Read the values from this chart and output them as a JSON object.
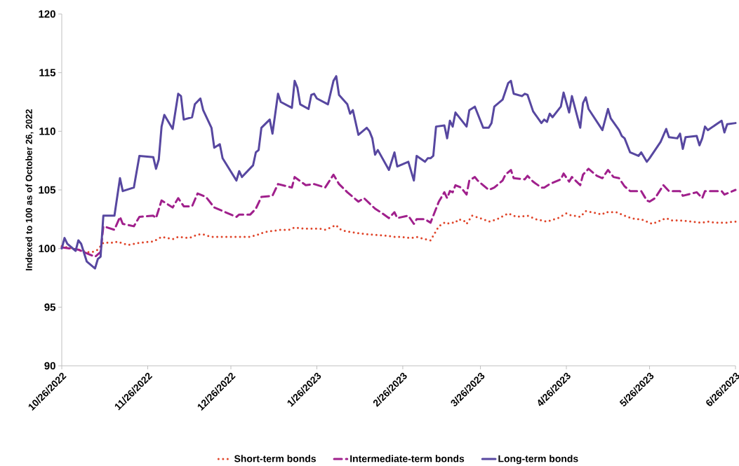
{
  "chart_data": {
    "type": "line",
    "ylabel": "Indexed to 100 as of October 26, 2022",
    "xlim": [
      "2022-10-26",
      "2023-06-26"
    ],
    "xticks": [
      {
        "value": "2022-10-26",
        "label": "10/26/2022"
      },
      {
        "value": "2022-11-26",
        "label": "11/26/2022"
      },
      {
        "value": "2022-12-26",
        "label": "12/26/2022"
      },
      {
        "value": "2023-01-26",
        "label": "1/26/2023"
      },
      {
        "value": "2023-02-26",
        "label": "2/26/2023"
      },
      {
        "value": "2023-03-26",
        "label": "3/26/2023"
      },
      {
        "value": "2023-04-26",
        "label": "4/26/2023"
      },
      {
        "value": "2023-05-26",
        "label": "5/26/2023"
      },
      {
        "value": "2023-06-26",
        "label": "6/26/2023"
      }
    ],
    "ylim": [
      90,
      120
    ],
    "yticks": [
      90,
      95,
      100,
      105,
      110,
      115,
      120
    ],
    "legend": "bottom",
    "marker": "none",
    "series": [
      {
        "name": "Short-term bonds",
        "color": "#e0452a",
        "line_style": "dotted",
        "x": [
          "2022-10-26",
          "2022-10-28",
          "2022-11-01",
          "2022-11-04",
          "2022-11-06",
          "2022-11-08",
          "2022-11-10",
          "2022-11-14",
          "2022-11-15",
          "2022-11-19",
          "2022-11-23",
          "2022-11-28",
          "2022-12-01",
          "2022-12-05",
          "2022-12-07",
          "2022-12-11",
          "2022-12-14",
          "2022-12-16",
          "2022-12-19",
          "2022-12-24",
          "2022-12-28",
          "2023-01-02",
          "2023-01-05",
          "2023-01-07",
          "2023-01-13",
          "2023-01-16",
          "2023-01-18",
          "2023-01-21",
          "2023-01-27",
          "2023-01-29",
          "2023-02-02",
          "2023-02-03",
          "2023-02-05",
          "2023-02-10",
          "2023-02-14",
          "2023-02-20",
          "2023-02-23",
          "2023-02-25",
          "2023-03-01",
          "2023-03-03",
          "2023-03-06",
          "2023-03-08",
          "2023-03-09",
          "2023-03-11",
          "2023-03-13",
          "2023-03-14",
          "2023-03-15",
          "2023-03-17",
          "2023-03-18",
          "2023-03-20",
          "2023-03-21",
          "2023-03-23",
          "2023-03-27",
          "2023-03-29",
          "2023-04-01",
          "2023-04-05",
          "2023-04-08",
          "2023-04-12",
          "2023-04-15",
          "2023-04-19",
          "2023-04-23",
          "2023-04-26",
          "2023-04-28",
          "2023-04-29",
          "2023-05-01",
          "2023-05-03",
          "2023-05-07",
          "2023-05-09",
          "2023-05-10",
          "2023-05-14",
          "2023-05-18",
          "2023-05-21",
          "2023-05-23",
          "2023-05-27",
          "2023-05-28",
          "2023-06-01",
          "2023-06-03",
          "2023-06-06",
          "2023-06-10",
          "2023-06-14",
          "2023-06-16",
          "2023-06-19",
          "2023-06-23",
          "2023-06-25",
          "2023-06-26"
        ],
        "values": [
          100.2,
          100.1,
          99.9,
          99.7,
          99.7,
          99.9,
          100.5,
          100.5,
          100.6,
          100.3,
          100.5,
          100.6,
          101.0,
          100.8,
          101.0,
          100.9,
          101.2,
          101.2,
          101.0,
          101.0,
          101.0,
          101.0,
          101.2,
          101.4,
          101.6,
          101.6,
          101.8,
          101.7,
          101.7,
          101.6,
          102.0,
          101.7,
          101.5,
          101.3,
          101.2,
          101.1,
          101.0,
          101.0,
          100.9,
          101.0,
          100.8,
          100.7,
          101.1,
          101.9,
          102.2,
          102.1,
          102.2,
          102.2,
          102.5,
          102.4,
          102.1,
          102.8,
          102.5,
          102.3,
          102.5,
          103.0,
          102.7,
          102.8,
          102.5,
          102.3,
          102.6,
          103.0,
          102.8,
          102.8,
          102.7,
          103.2,
          103.0,
          102.9,
          103.1,
          103.1,
          102.7,
          102.5,
          102.5,
          102.1,
          102.2,
          102.6,
          102.4,
          102.4,
          102.3,
          102.2,
          102.3,
          102.2,
          102.2,
          102.3,
          102.3
        ]
      },
      {
        "name": "Intermediate-term bonds",
        "color": "#a0208c",
        "line_style": "dashed",
        "x": [
          "2022-10-26",
          "2022-11-01",
          "2022-11-04",
          "2022-11-07",
          "2022-11-09",
          "2022-11-10",
          "2022-11-14",
          "2022-11-16",
          "2022-11-17",
          "2022-11-21",
          "2022-11-23",
          "2022-11-28",
          "2022-11-29",
          "2022-12-01",
          "2022-12-05",
          "2022-12-07",
          "2022-12-09",
          "2022-12-12",
          "2022-12-14",
          "2022-12-17",
          "2022-12-20",
          "2022-12-24",
          "2022-12-28",
          "2022-12-29",
          "2023-01-02",
          "2023-01-04",
          "2023-01-06",
          "2023-01-10",
          "2023-01-12",
          "2023-01-17",
          "2023-01-18",
          "2023-01-22",
          "2023-01-25",
          "2023-01-29",
          "2023-02-01",
          "2023-02-03",
          "2023-02-06",
          "2023-02-10",
          "2023-02-12",
          "2023-02-16",
          "2023-02-18",
          "2023-02-21",
          "2023-02-23",
          "2023-02-24",
          "2023-02-28",
          "2023-03-02",
          "2023-03-03",
          "2023-03-06",
          "2023-03-08",
          "2023-03-11",
          "2023-03-13",
          "2023-03-14",
          "2023-03-15",
          "2023-03-16",
          "2023-03-17",
          "2023-03-19",
          "2023-03-21",
          "2023-03-22",
          "2023-03-24",
          "2023-03-25",
          "2023-03-29",
          "2023-03-31",
          "2023-04-03",
          "2023-04-04",
          "2023-04-06",
          "2023-04-07",
          "2023-04-11",
          "2023-04-12",
          "2023-04-14",
          "2023-04-17",
          "2023-04-18",
          "2023-04-20",
          "2023-04-24",
          "2023-04-25",
          "2023-04-27",
          "2023-04-28",
          "2023-05-01",
          "2023-05-02",
          "2023-05-04",
          "2023-05-07",
          "2023-05-09",
          "2023-05-11",
          "2023-05-13",
          "2023-05-15",
          "2023-05-17",
          "2023-05-19",
          "2023-05-23",
          "2023-05-25",
          "2023-05-26",
          "2023-05-28",
          "2023-05-31",
          "2023-06-02",
          "2023-06-06",
          "2023-06-07",
          "2023-06-12",
          "2023-06-14",
          "2023-06-15",
          "2023-06-21",
          "2023-06-22",
          "2023-06-25",
          "2023-06-26"
        ],
        "values": [
          100.1,
          99.9,
          99.6,
          99.3,
          99.7,
          101.9,
          101.6,
          102.7,
          102.1,
          101.9,
          102.7,
          102.8,
          102.6,
          104.1,
          103.5,
          104.3,
          103.6,
          103.6,
          104.7,
          104.4,
          103.5,
          103.1,
          102.7,
          102.9,
          102.9,
          103.4,
          104.4,
          104.5,
          105.5,
          105.2,
          106.1,
          105.4,
          105.5,
          105.2,
          106.3,
          105.5,
          104.8,
          104.0,
          104.3,
          103.4,
          103.1,
          102.6,
          103.1,
          102.6,
          102.8,
          102.1,
          102.5,
          102.5,
          102.2,
          104.0,
          104.8,
          104.3,
          104.9,
          104.8,
          105.4,
          105.2,
          104.6,
          105.8,
          106.1,
          105.8,
          105.0,
          105.2,
          105.8,
          106.3,
          106.7,
          106.0,
          105.9,
          106.2,
          105.7,
          105.2,
          105.2,
          105.5,
          105.9,
          106.4,
          105.7,
          106.1,
          105.4,
          106.3,
          106.8,
          106.2,
          106.0,
          106.7,
          106.1,
          106.0,
          105.3,
          104.9,
          104.9,
          104.1,
          104.0,
          104.3,
          105.4,
          104.9,
          104.9,
          104.5,
          104.8,
          104.3,
          104.9,
          104.9,
          104.6,
          104.9,
          105.0
        ]
      },
      {
        "name": "Long-term bonds",
        "color": "#5747a0",
        "line_style": "solid",
        "x": [
          "2022-10-26",
          "2022-10-27",
          "2022-10-28",
          "2022-10-31",
          "2022-11-01",
          "2022-11-02",
          "2022-11-04",
          "2022-11-07",
          "2022-11-08",
          "2022-11-09",
          "2022-11-10",
          "2022-11-14",
          "2022-11-16",
          "2022-11-17",
          "2022-11-21",
          "2022-11-23",
          "2022-11-28",
          "2022-11-29",
          "2022-11-30",
          "2022-12-01",
          "2022-12-02",
          "2022-12-05",
          "2022-12-07",
          "2022-12-08",
          "2022-12-09",
          "2022-12-12",
          "2022-12-13",
          "2022-12-15",
          "2022-12-16",
          "2022-12-19",
          "2022-12-20",
          "2022-12-22",
          "2022-12-23",
          "2022-12-28",
          "2022-12-29",
          "2022-12-30",
          "2023-01-03",
          "2023-01-04",
          "2023-01-05",
          "2023-01-06",
          "2023-01-09",
          "2023-01-10",
          "2023-01-12",
          "2023-01-13",
          "2023-01-17",
          "2023-01-18",
          "2023-01-19",
          "2023-01-20",
          "2023-01-23",
          "2023-01-24",
          "2023-01-25",
          "2023-01-26",
          "2023-01-30",
          "2023-02-01",
          "2023-02-02",
          "2023-02-03",
          "2023-02-06",
          "2023-02-07",
          "2023-02-08",
          "2023-02-10",
          "2023-02-13",
          "2023-02-14",
          "2023-02-15",
          "2023-02-16",
          "2023-02-17",
          "2023-02-21",
          "2023-02-23",
          "2023-02-24",
          "2023-02-28",
          "2023-03-02",
          "2023-03-03",
          "2023-03-06",
          "2023-03-07",
          "2023-03-08",
          "2023-03-09",
          "2023-03-10",
          "2023-03-13",
          "2023-03-14",
          "2023-03-15",
          "2023-03-16",
          "2023-03-17",
          "2023-03-21",
          "2023-03-22",
          "2023-03-24",
          "2023-03-27",
          "2023-03-29",
          "2023-03-30",
          "2023-03-31",
          "2023-04-03",
          "2023-04-05",
          "2023-04-06",
          "2023-04-07",
          "2023-04-10",
          "2023-04-11",
          "2023-04-12",
          "2023-04-14",
          "2023-04-17",
          "2023-04-18",
          "2023-04-19",
          "2023-04-20",
          "2023-04-21",
          "2023-04-24",
          "2023-04-25",
          "2023-04-27",
          "2023-04-28",
          "2023-05-01",
          "2023-05-02",
          "2023-05-03",
          "2023-05-04",
          "2023-05-09",
          "2023-05-11",
          "2023-05-12",
          "2023-05-15",
          "2023-05-16",
          "2023-05-17",
          "2023-05-19",
          "2023-05-22",
          "2023-05-23",
          "2023-05-25",
          "2023-05-26",
          "2023-05-30",
          "2023-06-01",
          "2023-06-02",
          "2023-06-05",
          "2023-06-06",
          "2023-06-07",
          "2023-06-08",
          "2023-06-12",
          "2023-06-13",
          "2023-06-14",
          "2023-06-15",
          "2023-06-16",
          "2023-06-21",
          "2023-06-22",
          "2023-06-23",
          "2023-06-26"
        ],
        "values": [
          100.0,
          100.9,
          100.4,
          99.8,
          100.7,
          100.4,
          98.9,
          98.3,
          99.1,
          99.3,
          102.8,
          102.8,
          106.0,
          104.9,
          105.2,
          107.9,
          107.8,
          106.8,
          107.6,
          110.4,
          111.4,
          110.2,
          113.2,
          113.0,
          111.0,
          111.2,
          112.3,
          112.8,
          111.8,
          110.3,
          108.6,
          108.9,
          107.7,
          105.8,
          106.6,
          106.1,
          107.1,
          108.2,
          108.4,
          110.3,
          111.0,
          109.8,
          113.2,
          112.5,
          112.0,
          114.3,
          113.7,
          112.3,
          111.9,
          113.1,
          113.2,
          112.8,
          112.3,
          114.3,
          114.7,
          113.1,
          112.3,
          111.5,
          111.8,
          109.7,
          110.3,
          110.0,
          109.4,
          108.0,
          108.4,
          106.7,
          108.2,
          107.0,
          107.4,
          105.8,
          107.9,
          107.4,
          107.7,
          107.7,
          107.9,
          110.4,
          110.5,
          109.4,
          110.9,
          110.4,
          111.6,
          110.4,
          111.8,
          112.1,
          110.3,
          110.3,
          110.7,
          112.1,
          112.7,
          114.1,
          114.3,
          113.2,
          113.0,
          113.2,
          113.1,
          111.7,
          110.7,
          111.0,
          110.8,
          111.5,
          111.2,
          112.1,
          113.3,
          111.6,
          113.0,
          110.3,
          112.4,
          112.9,
          111.9,
          110.1,
          111.9,
          111.1,
          110.1,
          109.6,
          109.4,
          108.2,
          107.9,
          108.2,
          107.4,
          107.7,
          109.1,
          110.2,
          109.5,
          109.4,
          109.8,
          108.5,
          109.5,
          109.6,
          108.8,
          109.4,
          110.4,
          110.1,
          110.9,
          109.9,
          110.6,
          110.7
        ]
      }
    ]
  }
}
